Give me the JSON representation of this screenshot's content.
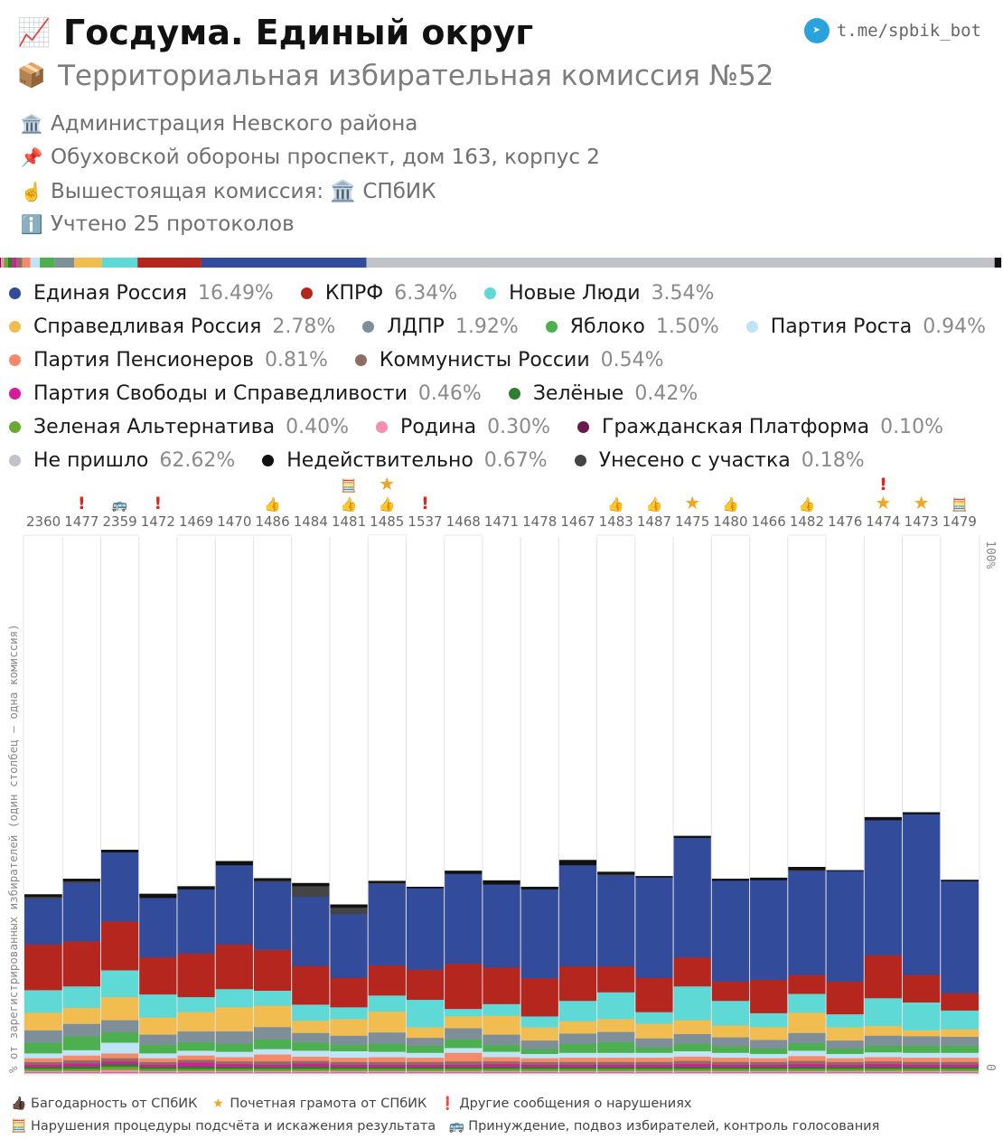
{
  "header": {
    "title": "Госдума. Единый округ",
    "subtitle": "Территориальная избирательная комиссия №52",
    "telegram": "t.me/spbik_bot",
    "info": [
      {
        "icon": "building-icon",
        "text": "Администрация Невского района"
      },
      {
        "icon": "pin-icon",
        "text": "Обуховской обороны проспект, дом 163, корпус 2"
      },
      {
        "icon": "pointing-up-icon",
        "text": "Вышестоящая комиссия: 🏛️ СПбИК"
      },
      {
        "icon": "info-icon",
        "text": "Учтено 25 протоколов"
      }
    ]
  },
  "legend": [
    [
      {
        "name": "Единая Россия",
        "pct": "16.49%",
        "color": "#324b9b"
      },
      {
        "name": "КПРФ",
        "pct": "6.34%",
        "color": "#b5261e"
      },
      {
        "name": "Новые Люди",
        "pct": "3.54%",
        "color": "#5fd9d6"
      }
    ],
    [
      {
        "name": "Справедливая Россия",
        "pct": "2.78%",
        "color": "#f2bd50"
      },
      {
        "name": "ЛДПР",
        "pct": "1.92%",
        "color": "#7f8f99"
      },
      {
        "name": "Яблоко",
        "pct": "1.50%",
        "color": "#4caf50"
      },
      {
        "name": "Партия Роста",
        "pct": "0.94%",
        "color": "#bfe3f7"
      }
    ],
    [
      {
        "name": "Партия Пенсионеров",
        "pct": "0.81%",
        "color": "#f5896a"
      },
      {
        "name": "Коммунисты России",
        "pct": "0.54%",
        "color": "#8d6e63"
      }
    ],
    [
      {
        "name": "Партия Свободы и Справедливости",
        "pct": "0.46%",
        "color": "#d81b9a"
      },
      {
        "name": "Зелёные",
        "pct": "0.42%",
        "color": "#2e7d32"
      }
    ],
    [
      {
        "name": "Зеленая Альтернатива",
        "pct": "0.40%",
        "color": "#6aa832"
      },
      {
        "name": "Родина",
        "pct": "0.30%",
        "color": "#f48fb1"
      },
      {
        "name": "Гражданская Платформа",
        "pct": "0.10%",
        "color": "#6a1b4d"
      }
    ],
    [
      {
        "name": "Не пришло",
        "pct": "62.62%",
        "color": "#c0c4c8"
      },
      {
        "name": "Недействительно",
        "pct": "0.67%",
        "color": "#111111"
      },
      {
        "name": "Унесено с участка",
        "pct": "0.18%",
        "color": "#444444"
      }
    ]
  ],
  "chart_data": {
    "type": "bar",
    "stacked": true,
    "ylabel": "% от зарегистрированных избирателей (один столбец — одна комиссия)",
    "ylim": [
      0,
      100
    ],
    "ytick_labels": [
      "0",
      "100%"
    ],
    "categories": [
      "2360",
      "1477",
      "2359",
      "1472",
      "1469",
      "1470",
      "1486",
      "1484",
      "1481",
      "1485",
      "1537",
      "1468",
      "1471",
      "1478",
      "1467",
      "1483",
      "1487",
      "1475",
      "1480",
      "1466",
      "1482",
      "1476",
      "1474",
      "1473",
      "1479"
    ],
    "markers": [
      [],
      [
        "!"
      ],
      [
        "bus"
      ],
      [
        "!"
      ],
      [],
      [],
      [
        "thanks"
      ],
      [],
      [
        "abacus",
        "thanks"
      ],
      [
        "star",
        "thanks"
      ],
      [
        "!"
      ],
      [],
      [],
      [],
      [],
      [
        "thanks"
      ],
      [
        "thanks"
      ],
      [
        "star"
      ],
      [
        "thanks"
      ],
      [],
      [
        "thanks"
      ],
      [],
      [
        "!",
        "star"
      ],
      [
        "star"
      ],
      [
        "abacus"
      ]
    ],
    "series": [
      {
        "name": "Гражданская Платформа",
        "color": "#6a1b4d",
        "values": [
          0.1,
          0.1,
          0.1,
          0.1,
          0.1,
          0.1,
          0.1,
          0.1,
          0.1,
          0.1,
          0.1,
          0.1,
          0.1,
          0.1,
          0.1,
          0.1,
          0.1,
          0.1,
          0.1,
          0.1,
          0.1,
          0.1,
          0.1,
          0.1,
          0.1
        ]
      },
      {
        "name": "Родина",
        "color": "#f48fb1",
        "values": [
          0.3,
          0.3,
          0.5,
          0.3,
          0.3,
          0.3,
          0.3,
          0.3,
          0.3,
          0.3,
          0.3,
          0.3,
          0.3,
          0.3,
          0.3,
          0.3,
          0.3,
          0.3,
          0.3,
          0.3,
          0.3,
          0.3,
          0.3,
          0.3,
          0.3
        ]
      },
      {
        "name": "Зеленая Альтернатива",
        "color": "#6aa832",
        "values": [
          0.4,
          0.4,
          0.6,
          0.4,
          0.4,
          0.4,
          0.4,
          0.4,
          0.4,
          0.4,
          0.4,
          0.4,
          0.4,
          0.4,
          0.4,
          0.4,
          0.4,
          0.4,
          0.4,
          0.4,
          0.4,
          0.4,
          0.4,
          0.4,
          0.4
        ]
      },
      {
        "name": "Зелёные",
        "color": "#2e7d32",
        "values": [
          0.4,
          0.5,
          0.5,
          0.4,
          0.5,
          0.4,
          0.4,
          0.5,
          0.4,
          0.4,
          0.4,
          0.4,
          0.4,
          0.4,
          0.4,
          0.4,
          0.4,
          0.4,
          0.4,
          0.4,
          0.4,
          0.4,
          0.4,
          0.4,
          0.4
        ]
      },
      {
        "name": "Партия Свободы и Справедливости",
        "color": "#d81b9a",
        "values": [
          0.4,
          0.5,
          0.5,
          0.4,
          0.7,
          0.5,
          0.4,
          0.5,
          0.4,
          0.4,
          0.4,
          0.4,
          0.5,
          0.4,
          0.4,
          0.4,
          0.4,
          0.5,
          0.4,
          0.4,
          0.5,
          0.4,
          0.5,
          0.4,
          0.4
        ]
      },
      {
        "name": "Коммунисты России",
        "color": "#8d6e63",
        "values": [
          0.5,
          0.6,
          0.6,
          0.5,
          0.5,
          0.5,
          0.6,
          0.5,
          0.5,
          0.5,
          0.5,
          0.6,
          0.5,
          0.5,
          0.5,
          0.5,
          0.5,
          0.6,
          0.5,
          0.5,
          0.6,
          0.5,
          0.5,
          0.5,
          0.5
        ]
      },
      {
        "name": "Партия Пенсионеров",
        "color": "#f5896a",
        "values": [
          0.7,
          0.9,
          0.9,
          0.7,
          0.8,
          0.8,
          1.3,
          0.8,
          0.8,
          0.9,
          0.8,
          1.6,
          0.8,
          0.7,
          0.8,
          0.8,
          0.8,
          0.8,
          0.8,
          0.7,
          0.9,
          0.7,
          0.8,
          0.8,
          0.8
        ]
      },
      {
        "name": "Партия Роста",
        "color": "#bfe3f7",
        "values": [
          0.9,
          1.0,
          2.0,
          0.9,
          0.9,
          1.0,
          1.0,
          1.1,
          1.2,
          1.0,
          0.9,
          0.9,
          1.0,
          0.8,
          0.9,
          0.9,
          0.9,
          1.0,
          0.9,
          0.8,
          1.0,
          0.8,
          0.9,
          0.9,
          0.9
        ]
      },
      {
        "name": "Яблоко",
        "color": "#4caf50",
        "values": [
          2.0,
          2.6,
          1.9,
          1.6,
          1.6,
          1.5,
          1.8,
          1.6,
          1.2,
          1.5,
          1.3,
          1.6,
          1.3,
          0.9,
          1.7,
          2.0,
          1.0,
          1.4,
          1.2,
          1.0,
          1.4,
          1.0,
          1.2,
          1.3,
          1.3
        ]
      },
      {
        "name": "ЛДПР",
        "color": "#7f8f99",
        "values": [
          2.3,
          2.3,
          2.3,
          1.9,
          2.0,
          2.3,
          2.3,
          1.7,
          1.7,
          2.1,
          1.5,
          2.1,
          1.9,
          1.6,
          1.9,
          1.9,
          1.7,
          1.8,
          1.7,
          1.6,
          1.9,
          1.5,
          1.9,
          1.8,
          1.7
        ]
      },
      {
        "name": "Справедливая Россия",
        "color": "#f2bd50",
        "values": [
          3.3,
          3.0,
          4.3,
          3.2,
          3.6,
          4.5,
          4.0,
          2.3,
          3.1,
          3.9,
          2.0,
          2.2,
          3.5,
          2.5,
          2.3,
          2.4,
          2.7,
          2.6,
          2.2,
          2.4,
          3.8,
          2.5,
          1.8,
          1.1,
          1.4
        ]
      },
      {
        "name": "Новые Люди",
        "color": "#5fd9d6",
        "values": [
          4.2,
          4.0,
          5.0,
          4.3,
          2.8,
          3.4,
          2.8,
          3.0,
          2.2,
          3.0,
          5.1,
          1.4,
          2.2,
          2.0,
          3.8,
          5.0,
          2.2,
          6.3,
          4.6,
          2.6,
          3.5,
          2.4,
          5.2,
          5.2,
          3.5
        ]
      },
      {
        "name": "КПРФ",
        "color": "#b5261e",
        "values": [
          8.5,
          8.4,
          9.1,
          6.9,
          8.1,
          8.3,
          7.6,
          7.2,
          5.5,
          5.6,
          5.6,
          8.4,
          6.8,
          7.1,
          6.4,
          4.8,
          6.4,
          5.4,
          3.6,
          6.2,
          3.5,
          6.1,
          8.0,
          5.1,
          3.2
        ]
      },
      {
        "name": "Единая Россия",
        "color": "#324b9b",
        "values": [
          8.6,
          10.9,
          12.9,
          11.1,
          12.0,
          14.8,
          12.7,
          12.9,
          11.9,
          15.2,
          15.2,
          16.8,
          15.5,
          16.6,
          18.9,
          17.0,
          18.7,
          22.3,
          18.8,
          18.6,
          19.4,
          20.6,
          25.2,
          30.0,
          20.9
        ]
      },
      {
        "name": "Унесено с участка",
        "color": "#444444",
        "values": [
          0.3,
          0.3,
          0.0,
          0.0,
          0.0,
          0.0,
          0.2,
          2.0,
          1.2,
          0.2,
          0.0,
          0.0,
          0.0,
          0.0,
          0.0,
          0.2,
          0.0,
          0.0,
          0.0,
          0.0,
          0.2,
          0.0,
          0.0,
          0.0,
          0.0
        ]
      },
      {
        "name": "Недействительно",
        "color": "#111111",
        "values": [
          0.5,
          0.5,
          0.5,
          0.8,
          0.6,
          0.8,
          0.5,
          0.6,
          0.6,
          0.4,
          0.3,
          0.6,
          0.8,
          0.5,
          1.0,
          0.5,
          0.3,
          0.4,
          0.4,
          0.5,
          0.6,
          0.2,
          0.6,
          0.4,
          0.3
        ]
      },
      {
        "name": "Не пришло",
        "color": "#ffffff",
        "values": [
          66.6,
          63.7,
          58.3,
          67.0,
          65.0,
          59.9,
          63.7,
          65.5,
          69.4,
          64.4,
          66.1,
          62.3,
          64.8,
          66.3,
          61.1,
          62.4,
          63.6,
          56.3,
          63.7,
          65.3,
          61.1,
          66.6,
          52.6,
          51.3,
          64.4
        ]
      }
    ]
  },
  "bottom_legend": [
    [
      {
        "icon": "thanks-icon",
        "glyph": "👍🏿",
        "label": "Багодарность от СПбИК"
      },
      {
        "icon": "star-icon",
        "glyph": "★",
        "label": "Почетная грамота от СПбИК"
      },
      {
        "icon": "exclamation-icon",
        "glyph": "❗",
        "label": "Другие сообщения о нарушениях"
      }
    ],
    [
      {
        "icon": "abacus-icon",
        "glyph": "🧮",
        "label": "Нарушения процедуры подсчёта и искажения результата"
      },
      {
        "icon": "bus-icon",
        "glyph": "🚌",
        "label": "Принуждение, подвоз избирателей, контроль голосования"
      }
    ]
  ],
  "turnout_bar": [
    {
      "name": "Гражданская Платформа",
      "color": "#6a1b4d",
      "value": 0.1
    },
    {
      "name": "Родина",
      "color": "#f48fb1",
      "value": 0.3
    },
    {
      "name": "Зеленая Альтернатива",
      "color": "#6aa832",
      "value": 0.4
    },
    {
      "name": "Зелёные",
      "color": "#2e7d32",
      "value": 0.42
    },
    {
      "name": "Партия Свободы и Справедливости",
      "color": "#d81b9a",
      "value": 0.46
    },
    {
      "name": "Коммунисты России",
      "color": "#8d6e63",
      "value": 0.54
    },
    {
      "name": "Партия Пенсионеров",
      "color": "#f5896a",
      "value": 0.81
    },
    {
      "name": "Партия Роста",
      "color": "#bfe3f7",
      "value": 0.94
    },
    {
      "name": "Яблоко",
      "color": "#4caf50",
      "value": 1.5
    },
    {
      "name": "ЛДПР",
      "color": "#7f8f99",
      "value": 1.92
    },
    {
      "name": "Справедливая Россия",
      "color": "#f2bd50",
      "value": 2.78
    },
    {
      "name": "Новые Люди",
      "color": "#5fd9d6",
      "value": 3.54
    },
    {
      "name": "КПРФ",
      "color": "#b5261e",
      "value": 6.34
    },
    {
      "name": "Единая Россия",
      "color": "#324b9b",
      "value": 16.49
    },
    {
      "name": "Не пришло",
      "color": "#c0c4c8",
      "value": 62.62
    },
    {
      "name": "Недействительно",
      "color": "#111111",
      "value": 0.67
    }
  ]
}
